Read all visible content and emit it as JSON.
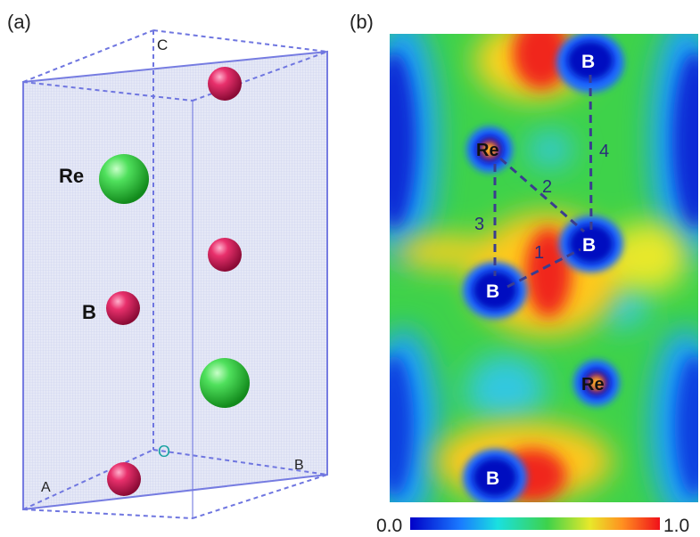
{
  "panel_a": {
    "label": "(a)",
    "axes": {
      "c": "C",
      "origin": "O",
      "a": "A",
      "b": "B"
    },
    "atom_labels": {
      "re": "Re",
      "b": "B"
    }
  },
  "panel_b": {
    "label": "(b)",
    "atom_labels": {
      "b_top": "B",
      "re_upper": "Re",
      "b_mid_right": "B",
      "b_mid_left": "B",
      "re_lower": "Re",
      "b_bottom": "B"
    },
    "bond_labels": [
      "1",
      "2",
      "3",
      "4"
    ],
    "colorbar": {
      "min_label": "0.0",
      "max_label": "1.0"
    }
  },
  "colors": {
    "re_atom": "#3bd34a",
    "b_atom": "#e0306a",
    "cell_edge": "#6f76e0",
    "bond_line": "#3a3d8f"
  }
}
